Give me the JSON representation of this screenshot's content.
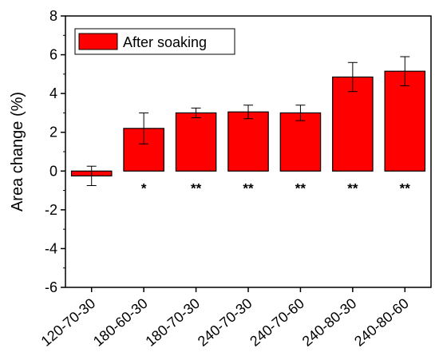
{
  "chart_data": {
    "type": "bar",
    "title": "",
    "xlabel": "",
    "ylabel": "Area change (%)",
    "ylim": [
      -6,
      8
    ],
    "yticks": [
      -6,
      -4,
      -2,
      0,
      2,
      4,
      6,
      8
    ],
    "categories": [
      "120-70-30",
      "180-60-30",
      "180-70-30",
      "240-70-30",
      "240-70-60",
      "240-80-30",
      "240-80-60"
    ],
    "series": [
      {
        "name": "After soaking",
        "color": "#ff0000",
        "values": [
          -0.25,
          2.2,
          3.0,
          3.05,
          3.0,
          4.85,
          5.15
        ],
        "errors": [
          0.5,
          0.8,
          0.25,
          0.35,
          0.4,
          0.75,
          0.75
        ]
      }
    ],
    "significance": [
      "",
      "*",
      "**",
      "**",
      "**",
      "**",
      "**"
    ],
    "legend_position": "top-left",
    "grid": false
  }
}
